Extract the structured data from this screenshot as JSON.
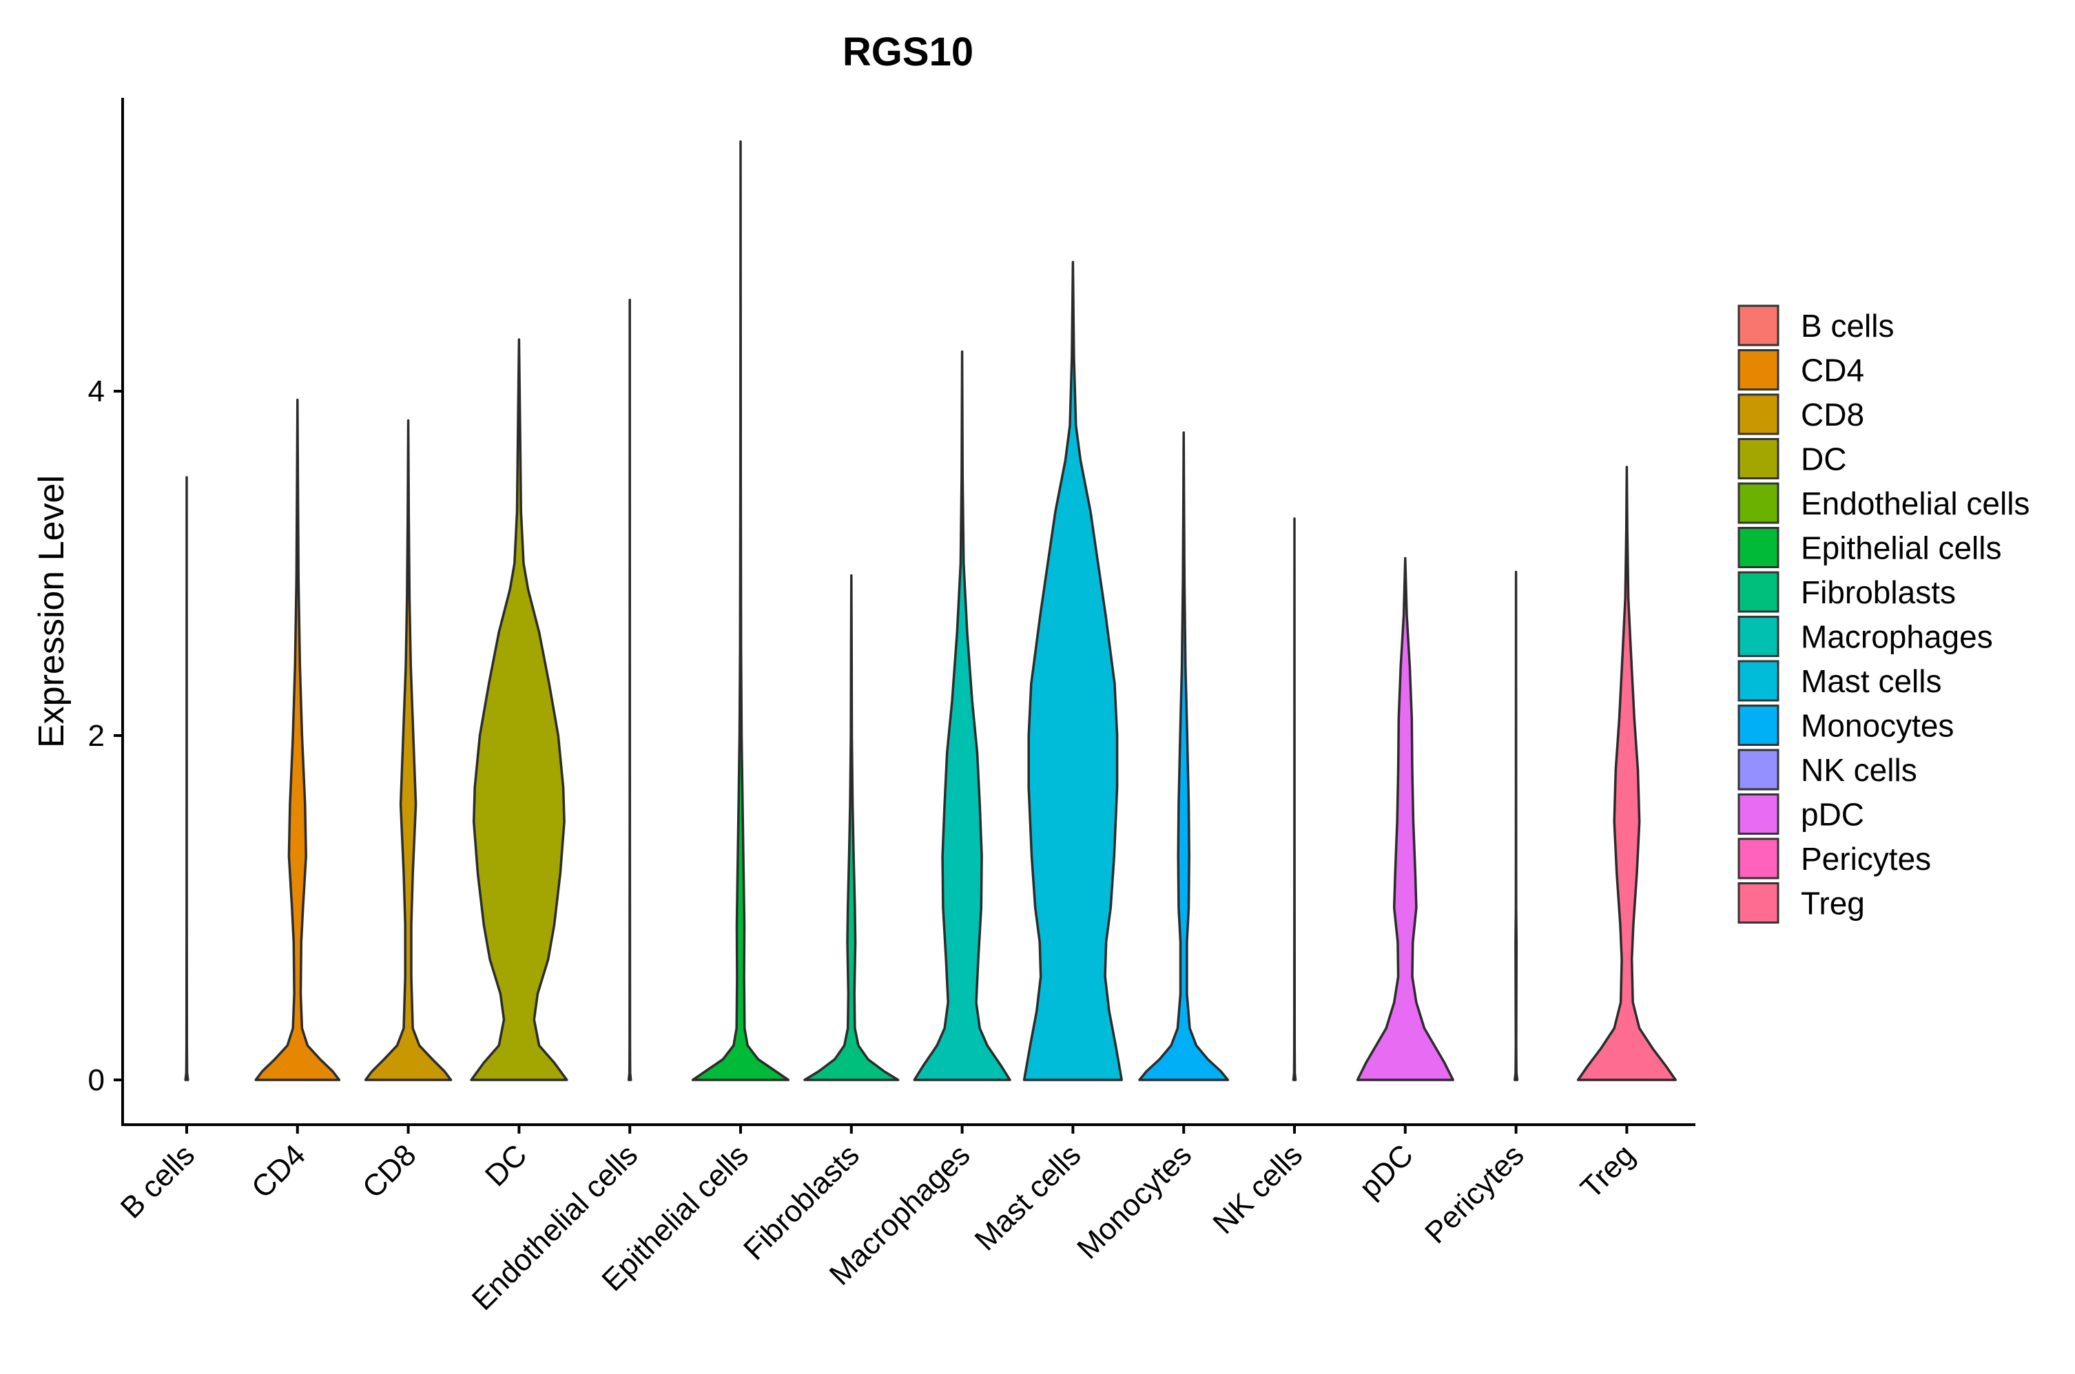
{
  "chart_data": {
    "type": "violin",
    "title": "RGS10",
    "xlabel": "",
    "ylabel": "Expression Level",
    "ylim": [
      -0.27,
      5.7
    ],
    "yticks": [
      0,
      2,
      4
    ],
    "grid": false,
    "legend_position": "right",
    "series": [
      {
        "name": "B cells",
        "color": "#F8766D",
        "max": 3.5,
        "profile": [
          [
            0,
            0.025
          ],
          [
            0.04,
            0.008
          ],
          [
            0.2,
            0.004
          ],
          [
            1.0,
            0.002
          ],
          [
            3.5,
            0.0
          ]
        ]
      },
      {
        "name": "CD4",
        "color": "#E58700",
        "max": 3.95,
        "profile": [
          [
            0,
            0.83
          ],
          [
            0.05,
            0.7
          ],
          [
            0.12,
            0.45
          ],
          [
            0.2,
            0.2
          ],
          [
            0.3,
            0.09
          ],
          [
            0.5,
            0.065
          ],
          [
            0.8,
            0.075
          ],
          [
            1.0,
            0.11
          ],
          [
            1.3,
            0.17
          ],
          [
            1.6,
            0.15
          ],
          [
            2.0,
            0.09
          ],
          [
            2.4,
            0.05
          ],
          [
            2.9,
            0.02
          ],
          [
            3.5,
            0.008
          ],
          [
            3.95,
            0.0
          ]
        ]
      },
      {
        "name": "CD8",
        "color": "#C99800",
        "max": 3.83,
        "profile": [
          [
            0,
            0.85
          ],
          [
            0.05,
            0.72
          ],
          [
            0.12,
            0.48
          ],
          [
            0.2,
            0.22
          ],
          [
            0.3,
            0.09
          ],
          [
            0.6,
            0.06
          ],
          [
            0.9,
            0.06
          ],
          [
            1.2,
            0.09
          ],
          [
            1.6,
            0.15
          ],
          [
            2.0,
            0.1
          ],
          [
            2.4,
            0.05
          ],
          [
            2.8,
            0.025
          ],
          [
            3.3,
            0.01
          ],
          [
            3.83,
            0.0
          ]
        ]
      },
      {
        "name": "DC",
        "color": "#A3A500",
        "max": 4.3,
        "profile": [
          [
            0,
            0.95
          ],
          [
            0.1,
            0.7
          ],
          [
            0.2,
            0.4
          ],
          [
            0.35,
            0.3
          ],
          [
            0.5,
            0.37
          ],
          [
            0.7,
            0.58
          ],
          [
            0.9,
            0.7
          ],
          [
            1.2,
            0.82
          ],
          [
            1.5,
            0.9
          ],
          [
            1.7,
            0.88
          ],
          [
            2.0,
            0.78
          ],
          [
            2.3,
            0.6
          ],
          [
            2.6,
            0.4
          ],
          [
            2.85,
            0.18
          ],
          [
            3.0,
            0.09
          ],
          [
            3.3,
            0.04
          ],
          [
            3.8,
            0.02
          ],
          [
            4.3,
            0.0
          ]
        ]
      },
      {
        "name": "Endothelial cells",
        "color": "#6BB100",
        "max": 4.53,
        "profile": [
          [
            0,
            0.02
          ],
          [
            0.04,
            0.007
          ],
          [
            0.2,
            0.004
          ],
          [
            1.5,
            0.002
          ],
          [
            4.53,
            0.0
          ]
        ]
      },
      {
        "name": "Epithelial cells",
        "color": "#00BA38",
        "max": 5.45,
        "profile": [
          [
            0,
            0.95
          ],
          [
            0.05,
            0.7
          ],
          [
            0.12,
            0.35
          ],
          [
            0.2,
            0.14
          ],
          [
            0.3,
            0.08
          ],
          [
            0.6,
            0.07
          ],
          [
            0.9,
            0.075
          ],
          [
            1.2,
            0.06
          ],
          [
            1.6,
            0.04
          ],
          [
            2.0,
            0.02
          ],
          [
            2.5,
            0.01
          ],
          [
            3.5,
            0.004
          ],
          [
            5.45,
            0.0
          ]
        ]
      },
      {
        "name": "Fibroblasts",
        "color": "#00BF7D",
        "max": 2.93,
        "profile": [
          [
            0,
            0.93
          ],
          [
            0.05,
            0.65
          ],
          [
            0.12,
            0.33
          ],
          [
            0.2,
            0.14
          ],
          [
            0.3,
            0.07
          ],
          [
            0.5,
            0.06
          ],
          [
            0.8,
            0.08
          ],
          [
            1.0,
            0.07
          ],
          [
            1.3,
            0.045
          ],
          [
            1.6,
            0.025
          ],
          [
            2.0,
            0.01
          ],
          [
            2.5,
            0.005
          ],
          [
            2.93,
            0.0
          ]
        ]
      },
      {
        "name": "Macrophages",
        "color": "#00C0AF",
        "max": 4.23,
        "profile": [
          [
            0,
            0.95
          ],
          [
            0.08,
            0.78
          ],
          [
            0.2,
            0.5
          ],
          [
            0.3,
            0.35
          ],
          [
            0.45,
            0.28
          ],
          [
            0.7,
            0.32
          ],
          [
            1.0,
            0.38
          ],
          [
            1.3,
            0.39
          ],
          [
            1.6,
            0.35
          ],
          [
            1.9,
            0.3
          ],
          [
            2.2,
            0.2
          ],
          [
            2.6,
            0.1
          ],
          [
            3.0,
            0.03
          ],
          [
            3.5,
            0.01
          ],
          [
            4.23,
            0.0
          ]
        ]
      },
      {
        "name": "Mast cells",
        "color": "#00BCD8",
        "max": 4.75,
        "profile": [
          [
            0,
            0.97
          ],
          [
            0.2,
            0.85
          ],
          [
            0.4,
            0.72
          ],
          [
            0.6,
            0.64
          ],
          [
            0.8,
            0.66
          ],
          [
            1.0,
            0.75
          ],
          [
            1.3,
            0.82
          ],
          [
            1.7,
            0.88
          ],
          [
            2.0,
            0.88
          ],
          [
            2.3,
            0.83
          ],
          [
            2.7,
            0.65
          ],
          [
            3.0,
            0.5
          ],
          [
            3.3,
            0.35
          ],
          [
            3.6,
            0.15
          ],
          [
            3.8,
            0.06
          ],
          [
            4.2,
            0.02
          ],
          [
            4.75,
            0.0
          ]
        ]
      },
      {
        "name": "Monocytes",
        "color": "#00B0F6",
        "max": 3.76,
        "profile": [
          [
            0,
            0.88
          ],
          [
            0.05,
            0.74
          ],
          [
            0.12,
            0.48
          ],
          [
            0.2,
            0.25
          ],
          [
            0.3,
            0.12
          ],
          [
            0.5,
            0.065
          ],
          [
            0.8,
            0.065
          ],
          [
            1.0,
            0.1
          ],
          [
            1.3,
            0.11
          ],
          [
            1.6,
            0.1
          ],
          [
            2.0,
            0.07
          ],
          [
            2.4,
            0.035
          ],
          [
            2.9,
            0.015
          ],
          [
            3.4,
            0.005
          ],
          [
            3.76,
            0.0
          ]
        ]
      },
      {
        "name": "NK cells",
        "color": "#9590FF",
        "max": 3.26,
        "profile": [
          [
            0,
            0.02
          ],
          [
            0.04,
            0.007
          ],
          [
            0.2,
            0.004
          ],
          [
            1.2,
            0.002
          ],
          [
            3.26,
            0.0
          ]
        ]
      },
      {
        "name": "pDC",
        "color": "#E76BF3",
        "max": 3.03,
        "profile": [
          [
            0,
            0.95
          ],
          [
            0.1,
            0.78
          ],
          [
            0.2,
            0.58
          ],
          [
            0.3,
            0.38
          ],
          [
            0.45,
            0.22
          ],
          [
            0.6,
            0.14
          ],
          [
            0.8,
            0.15
          ],
          [
            1.0,
            0.22
          ],
          [
            1.2,
            0.2
          ],
          [
            1.5,
            0.16
          ],
          [
            1.8,
            0.14
          ],
          [
            2.1,
            0.13
          ],
          [
            2.4,
            0.09
          ],
          [
            2.7,
            0.03
          ],
          [
            3.03,
            0.0
          ]
        ]
      },
      {
        "name": "Pericytes",
        "color": "#FF62BC",
        "max": 2.95,
        "profile": [
          [
            0,
            0.025
          ],
          [
            0.04,
            0.008
          ],
          [
            0.2,
            0.004
          ],
          [
            0.8,
            0.01
          ],
          [
            1.0,
            0.003
          ],
          [
            2.95,
            0.0
          ]
        ]
      },
      {
        "name": "Treg",
        "color": "#FF6C91",
        "max": 3.56,
        "profile": [
          [
            0,
            0.97
          ],
          [
            0.08,
            0.78
          ],
          [
            0.18,
            0.52
          ],
          [
            0.3,
            0.25
          ],
          [
            0.45,
            0.12
          ],
          [
            0.7,
            0.1
          ],
          [
            0.9,
            0.13
          ],
          [
            1.2,
            0.2
          ],
          [
            1.5,
            0.25
          ],
          [
            1.8,
            0.22
          ],
          [
            2.1,
            0.15
          ],
          [
            2.5,
            0.08
          ],
          [
            2.8,
            0.03
          ],
          [
            3.2,
            0.01
          ],
          [
            3.56,
            0.0
          ]
        ]
      }
    ]
  }
}
